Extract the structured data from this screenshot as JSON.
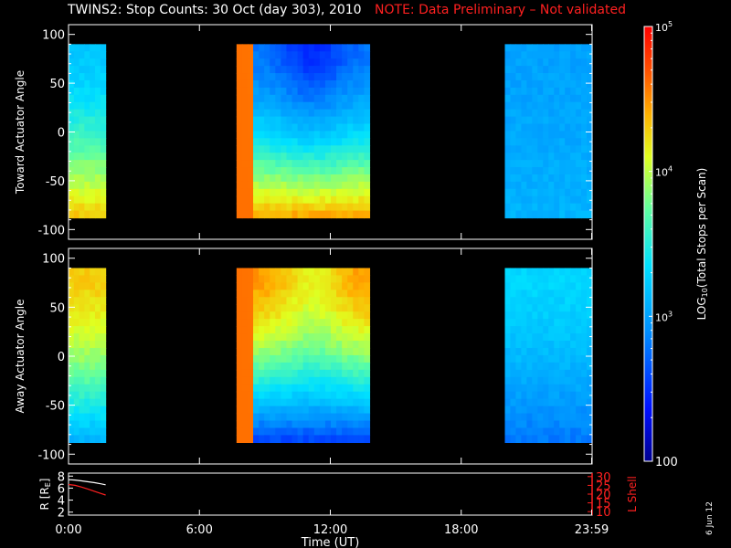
{
  "title": {
    "main": "TWINS2: Stop Counts: 30 Oct (day 303), 2010",
    "note": "NOTE: Data Preliminary – Not validated",
    "note_color": "#ff2020"
  },
  "stamp": "6 Jun 12",
  "colorbar": {
    "label": "LOG10(Total Stops per Scan)",
    "tick_labels": [
      "10^5",
      "10^4",
      "10^3",
      "100"
    ],
    "tick_values": [
      100000,
      10000,
      1000,
      100
    ],
    "range": [
      100,
      100000
    ],
    "scale": "log",
    "colormap": "rainbow"
  },
  "chart_data": [
    {
      "type": "heatmap",
      "panel": "toward",
      "ylabel": "Toward Actuator Angle",
      "ylim": [
        -110,
        110
      ],
      "yticks": [
        100,
        50,
        0,
        -50,
        -100
      ],
      "xlim": [
        0,
        24
      ],
      "x_unit": "hours UT",
      "data_intervals_hours": [
        [
          0.0,
          1.7
        ],
        [
          7.7,
          13.8
        ],
        [
          20.0,
          24.0
        ]
      ],
      "angle_range": [
        -88,
        90
      ],
      "description_values": [
        {
          "interval": 0,
          "high_angle_log_counts": 3.2,
          "low_angle_log_counts": 4.3
        },
        {
          "interval": 1,
          "high_angle_log_counts": 2.8,
          "low_angle_log_counts": 4.4
        },
        {
          "interval": 2,
          "high_angle_log_counts": 3.0,
          "low_angle_log_counts": 3.1
        }
      ]
    },
    {
      "type": "heatmap",
      "panel": "away",
      "ylabel": "Away Actuator Angle",
      "ylim": [
        -110,
        110
      ],
      "yticks": [
        100,
        50,
        0,
        -50,
        -100
      ],
      "xlim": [
        0,
        24
      ],
      "x_unit": "hours UT",
      "data_intervals_hours": [
        [
          0.0,
          1.7
        ],
        [
          7.7,
          13.8
        ],
        [
          20.0,
          24.0
        ]
      ],
      "angle_range": [
        -88,
        90
      ],
      "description_values": [
        {
          "interval": 0,
          "high_angle_log_counts": 4.3,
          "low_angle_log_counts": 3.1
        },
        {
          "interval": 1,
          "high_angle_log_counts": 4.5,
          "low_angle_log_counts": 2.6
        },
        {
          "interval": 2,
          "high_angle_log_counts": 3.3,
          "low_angle_log_counts": 2.8
        }
      ]
    },
    {
      "type": "line",
      "panel": "orbit",
      "xlabel": "Time (UT)",
      "x_tick_labels": [
        "0:00",
        "6:00",
        "12:00",
        "18:00",
        "23:59"
      ],
      "x_tick_values": [
        0,
        6,
        12,
        18,
        23.98
      ],
      "ylabel_left": "R [RE]",
      "yticks_left": [
        8,
        6,
        4,
        2
      ],
      "ylim_left": [
        1.5,
        8.5
      ],
      "ylabel_right": "L Shell",
      "yticks_right": [
        30,
        25,
        20,
        15,
        10
      ],
      "ylim_right": [
        8,
        32
      ],
      "series": [
        {
          "name": "R [RE]",
          "axis": "left",
          "color": "#ffffff",
          "x": [
            0.0,
            0.3,
            0.6,
            0.9,
            1.2,
            1.5,
            1.7
          ],
          "y": [
            7.4,
            7.35,
            7.2,
            7.05,
            6.9,
            6.7,
            6.55
          ]
        },
        {
          "name": "L Shell",
          "axis": "right",
          "color": "#ff2020",
          "x": [
            0.0,
            0.3,
            0.6,
            0.9,
            1.2,
            1.5,
            1.7
          ],
          "y": [
            25.5,
            25.0,
            24.0,
            22.8,
            21.5,
            20.3,
            19.5
          ]
        }
      ]
    }
  ]
}
